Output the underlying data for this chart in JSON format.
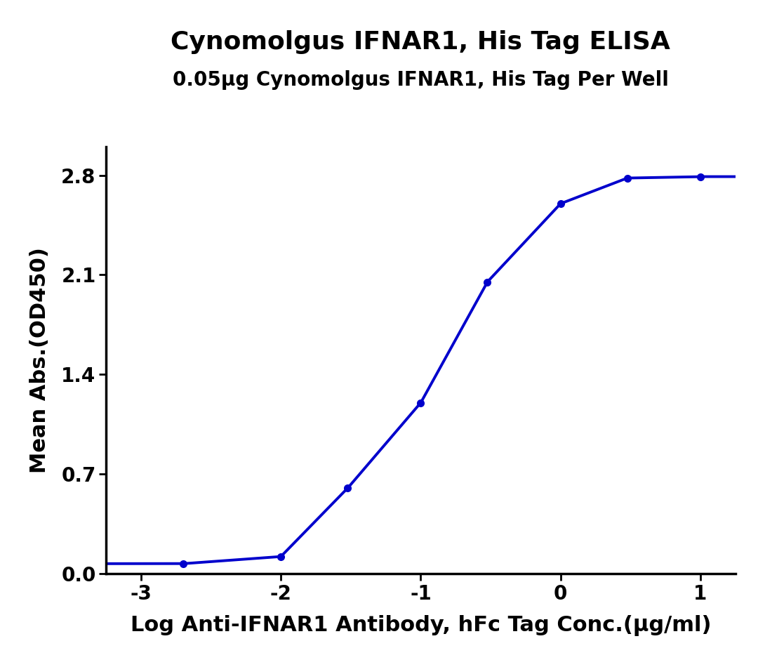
{
  "title": "Cynomolgus IFNAR1, His Tag ELISA",
  "subtitle": "0.05μg Cynomolgus IFNAR1, His Tag Per Well",
  "xlabel": "Log Anti-IFNAR1 Antibody, hFc Tag Conc.(μg/ml)",
  "ylabel": "Mean Abs.(OD450)",
  "xlim": [
    -3.25,
    1.25
  ],
  "ylim": [
    0.0,
    3.0
  ],
  "xticks": [
    -3,
    -2,
    -1,
    0,
    1
  ],
  "yticks": [
    0.0,
    0.7,
    1.4,
    2.1,
    2.8
  ],
  "data_x": [
    -2.699,
    -2.0,
    -1.523,
    -1.0,
    -0.523,
    0.0,
    0.477,
    1.0
  ],
  "data_y": [
    0.07,
    0.12,
    0.6,
    1.2,
    2.05,
    2.6,
    2.78,
    2.79
  ],
  "line_color": "#0000CC",
  "marker_color": "#0000CC",
  "bg_color": "#ffffff",
  "title_fontsize": 26,
  "subtitle_fontsize": 20,
  "xlabel_fontsize": 22,
  "ylabel_fontsize": 22,
  "tick_fontsize": 20,
  "line_width": 2.8,
  "marker_size": 8
}
